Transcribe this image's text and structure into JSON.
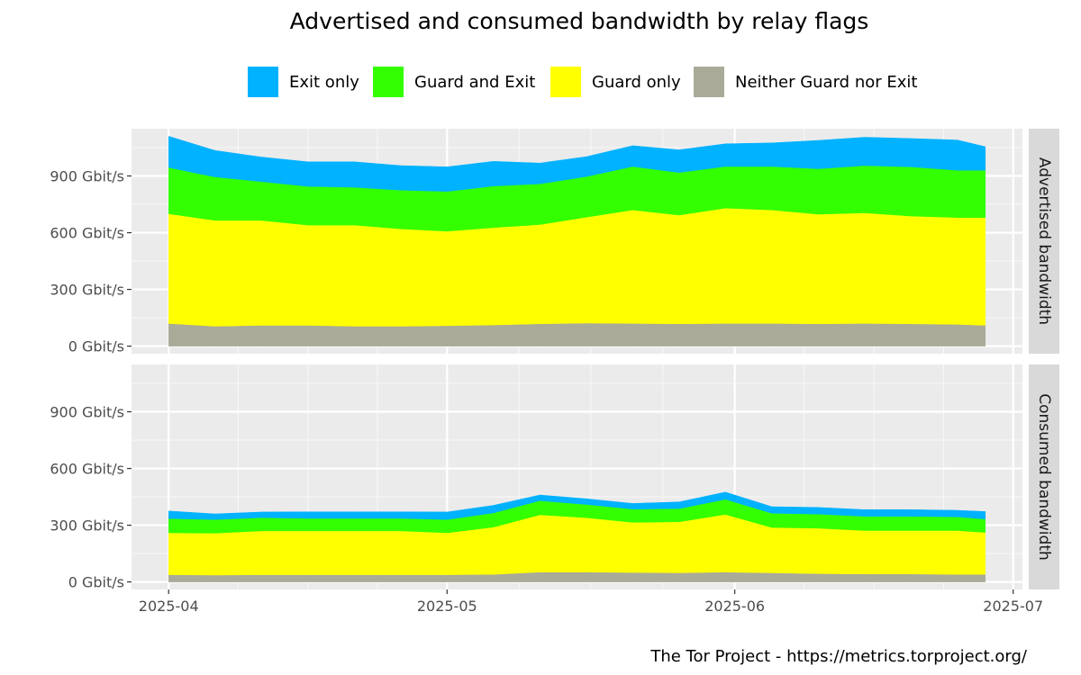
{
  "chart_data": {
    "type": "area",
    "title": "Advertised and consumed bandwidth by relay flags",
    "caption": "The Tor Project - https://metrics.torproject.org/",
    "legend_position": "top",
    "legend": [
      {
        "name": "Exit only",
        "color": "#00b2ff"
      },
      {
        "name": "Guard and Exit",
        "color": "#33ff00"
      },
      {
        "name": "Guard only",
        "color": "#ffff00"
      },
      {
        "name": "Neither Guard nor Exit",
        "color": "#aaaa99"
      }
    ],
    "x_ticks": [
      {
        "label": "2025-04",
        "date": "2025-04-01"
      },
      {
        "label": "2025-05",
        "date": "2025-05-01"
      },
      {
        "label": "2025-06",
        "date": "2025-06-01"
      },
      {
        "label": "2025-07",
        "date": "2025-07-01"
      }
    ],
    "xlim": [
      "2025-03-28",
      "2025-07-02"
    ],
    "y_ticks": [
      {
        "label": "0 Gbit/s",
        "value": 0
      },
      {
        "label": "300 Gbit/s",
        "value": 300
      },
      {
        "label": "600 Gbit/s",
        "value": 600
      },
      {
        "label": "900 Gbit/s",
        "value": 900
      }
    ],
    "ylim": [
      -40,
      1150
    ],
    "unit": "Gbit/s",
    "grid": true,
    "stack_order": [
      "Neither Guard nor Exit",
      "Guard only",
      "Guard and Exit",
      "Exit only"
    ],
    "panels": [
      {
        "name": "Advertised bandwidth",
        "dates": [
          "2025-04-01",
          "2025-04-06",
          "2025-04-11",
          "2025-04-16",
          "2025-04-21",
          "2025-04-26",
          "2025-05-01",
          "2025-05-06",
          "2025-05-11",
          "2025-05-16",
          "2025-05-21",
          "2025-05-26",
          "2025-05-31",
          "2025-06-05",
          "2025-06-10",
          "2025-06-15",
          "2025-06-20",
          "2025-06-25",
          "2025-06-28"
        ],
        "series": [
          {
            "name": "Neither Guard nor Exit",
            "values": [
              120,
              105,
              110,
              110,
              105,
              105,
              108,
              112,
              118,
              122,
              120,
              118,
              120,
              120,
              118,
              120,
              118,
              115,
              110
            ]
          },
          {
            "name": "Guard only",
            "values": [
              580,
              560,
              555,
              530,
              535,
              515,
              500,
              515,
              525,
              560,
              600,
              575,
              610,
              600,
              580,
              585,
              570,
              565,
              570
            ]
          },
          {
            "name": "Guard and Exit",
            "values": [
              245,
              230,
              205,
              205,
              200,
              205,
              210,
              220,
              215,
              215,
              230,
              225,
              220,
              230,
              240,
              250,
              260,
              250,
              250
            ]
          },
          {
            "name": "Exit only",
            "values": [
              165,
              140,
              130,
              130,
              135,
              130,
              130,
              130,
              110,
              105,
              110,
              120,
              120,
              125,
              150,
              150,
              150,
              160,
              125
            ]
          }
        ]
      },
      {
        "name": "Consumed bandwidth",
        "dates": [
          "2025-04-01",
          "2025-04-06",
          "2025-04-11",
          "2025-04-16",
          "2025-04-21",
          "2025-04-26",
          "2025-05-01",
          "2025-05-06",
          "2025-05-11",
          "2025-05-16",
          "2025-05-21",
          "2025-05-26",
          "2025-05-31",
          "2025-06-05",
          "2025-06-10",
          "2025-06-15",
          "2025-06-20",
          "2025-06-25",
          "2025-06-28"
        ],
        "series": [
          {
            "name": "Neither Guard nor Exit",
            "values": [
              38,
              36,
              38,
              38,
              38,
              38,
              38,
              40,
              52,
              52,
              50,
              48,
              52,
              48,
              44,
              42,
              42,
              40,
              40
            ]
          },
          {
            "name": "Guard only",
            "values": [
              222,
              222,
              232,
              232,
              232,
              232,
              222,
              250,
              303,
              288,
              265,
              270,
              305,
              240,
              240,
              230,
              230,
              232,
              222
            ]
          },
          {
            "name": "Guard and Exit",
            "values": [
              75,
              72,
              70,
              66,
              66,
              66,
              70,
              75,
              75,
              70,
              70,
              70,
              80,
              75,
              75,
              75,
              75,
              72,
              70
            ]
          },
          {
            "name": "Exit only",
            "values": [
              40,
              30,
              30,
              35,
              35,
              35,
              40,
              40,
              30,
              30,
              30,
              35,
              38,
              35,
              35,
              35,
              35,
              35,
              40
            ]
          }
        ]
      }
    ]
  }
}
